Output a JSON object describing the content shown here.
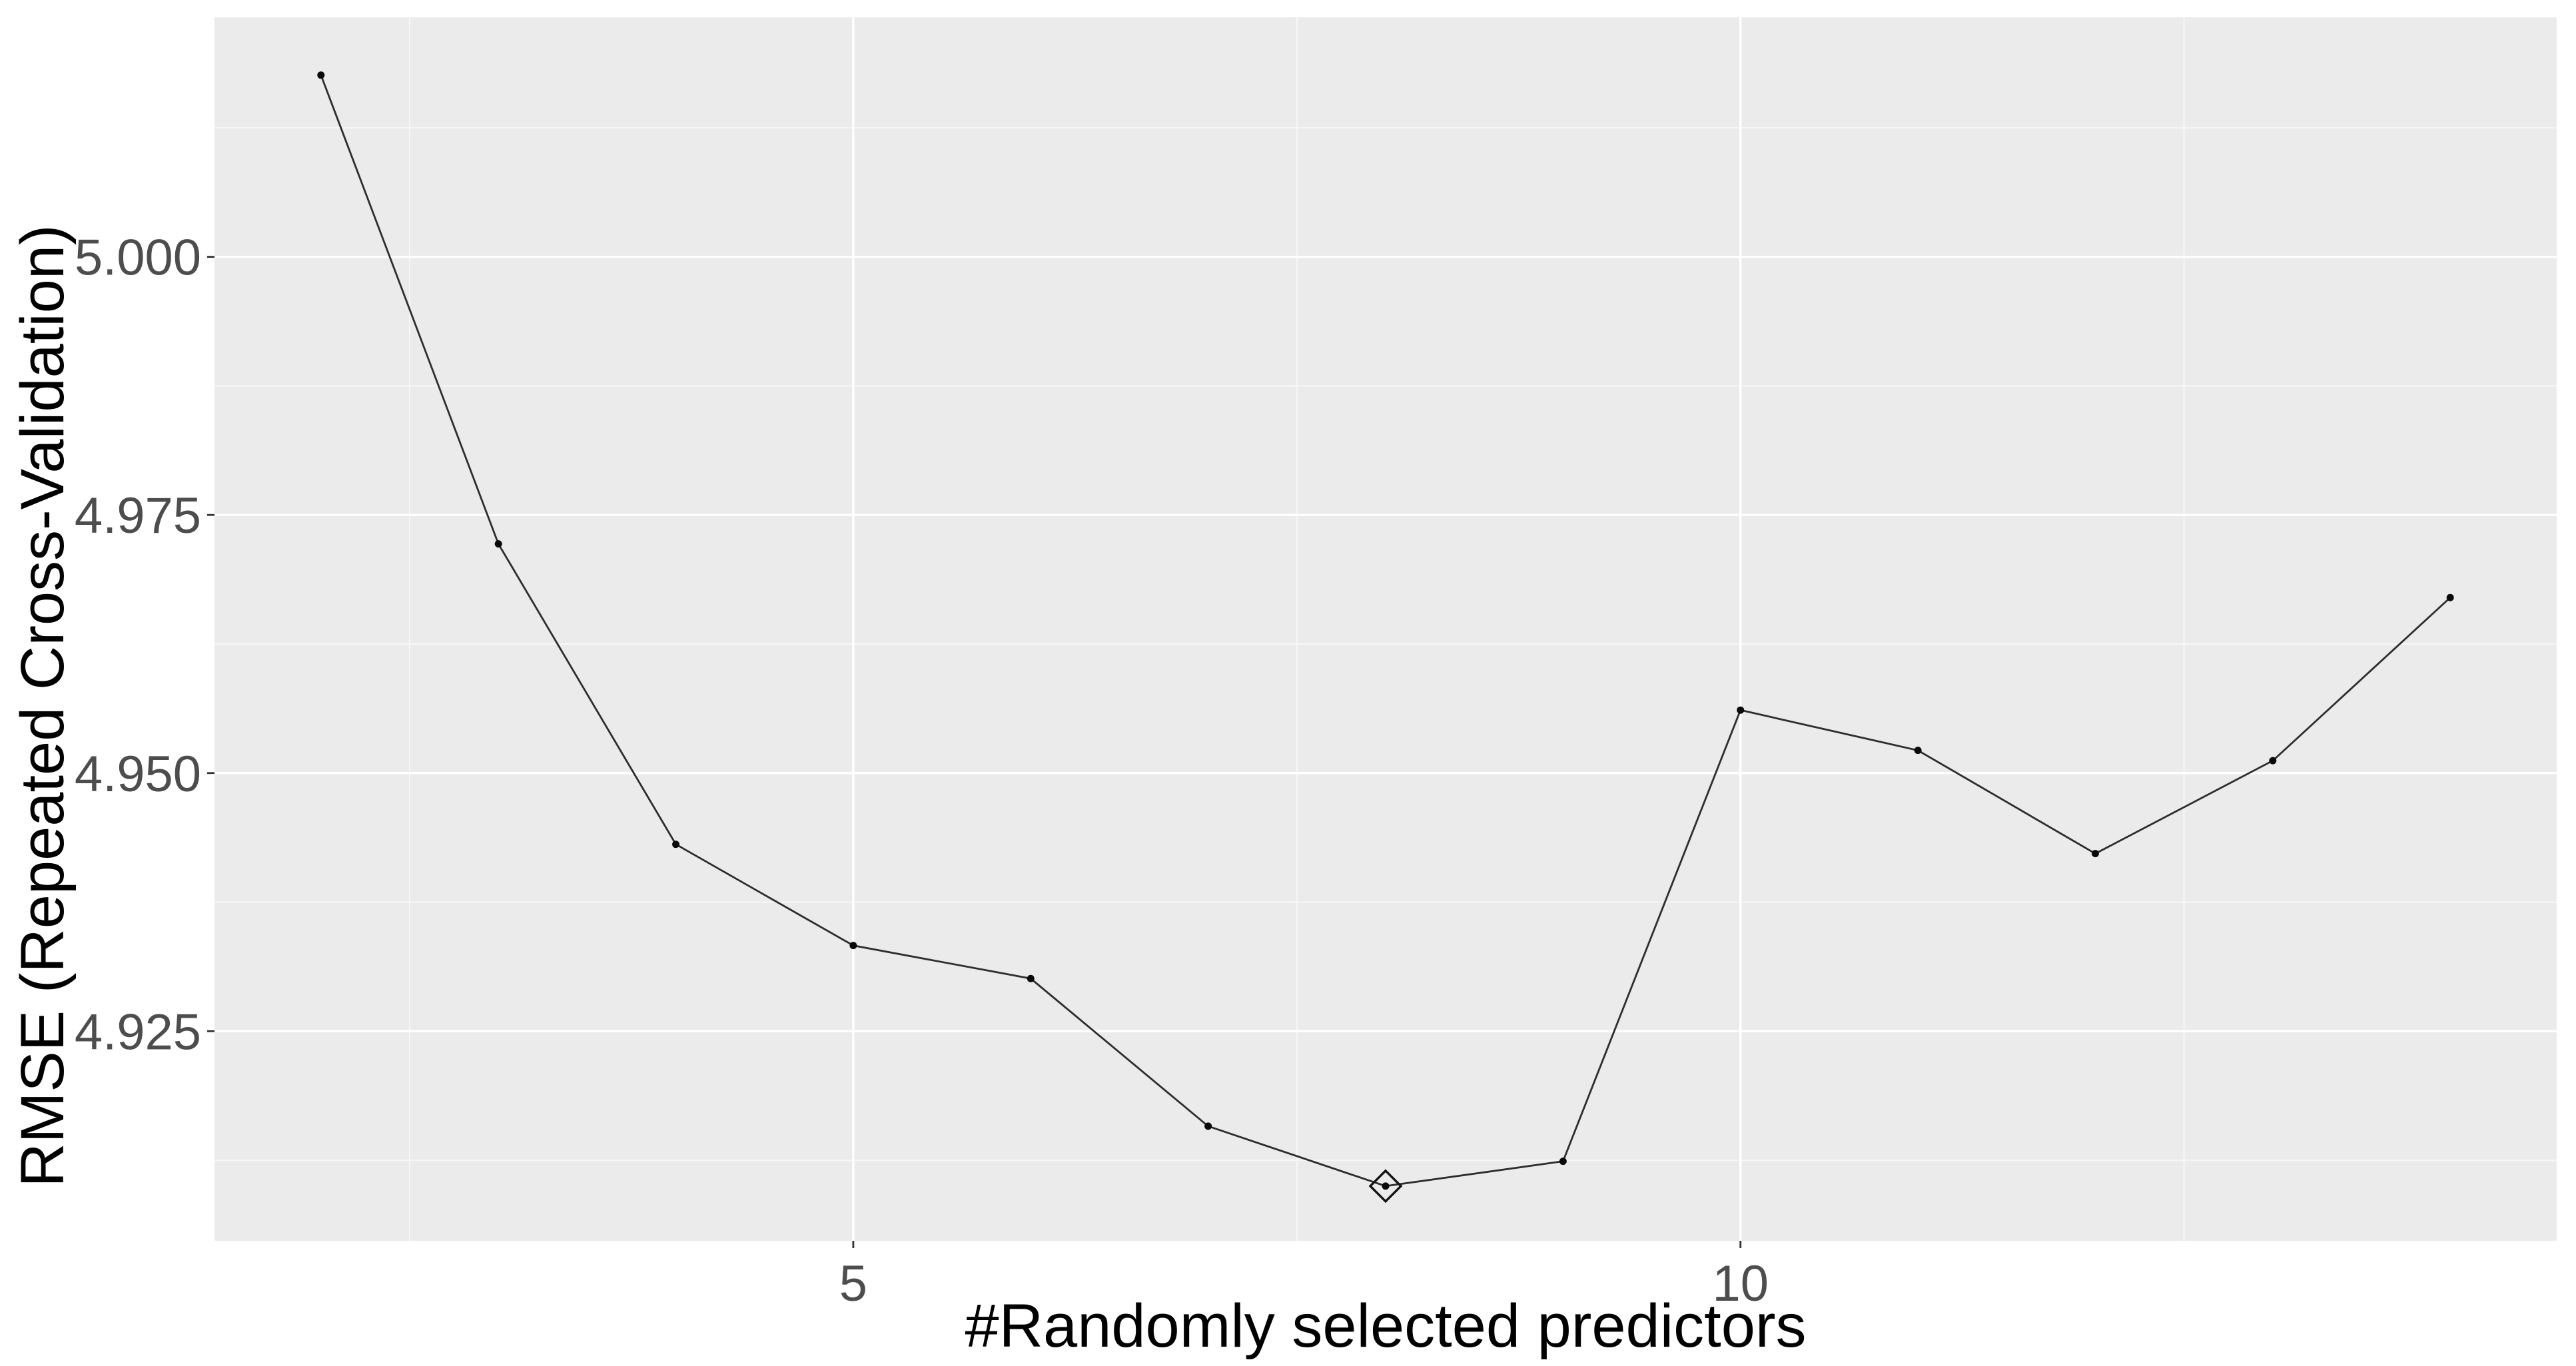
{
  "chart_data": {
    "type": "line",
    "title": "",
    "xlabel": "#Randomly selected predictors",
    "ylabel": "RMSE (Repeated Cross-Validation)",
    "x": [
      2,
      3,
      4,
      5,
      6,
      7,
      8,
      9,
      10,
      11,
      12,
      13,
      14
    ],
    "series": [
      {
        "name": "RMSE",
        "values": [
          5.0176,
          4.9722,
          4.9431,
          4.9333,
          4.9301,
          4.9158,
          4.91,
          4.9124,
          4.9561,
          4.9522,
          4.9422,
          4.9512,
          4.967
        ]
      }
    ],
    "best_point": {
      "x": 8,
      "value": 4.91,
      "marker": "open-diamond"
    },
    "x_ticks": [
      5,
      10
    ],
    "x_tick_labels": [
      "5",
      "10"
    ],
    "x_minor": [
      2.5,
      7.5,
      12.5
    ],
    "y_ticks": [
      5.0,
      4.975,
      4.95,
      4.925
    ],
    "y_tick_labels": [
      "5.000",
      "4.975",
      "4.950",
      "4.925"
    ],
    "y_minor": [
      5.0125,
      4.9875,
      4.9625,
      4.9375,
      4.9125
    ],
    "xlim": [
      1.4,
      14.6
    ],
    "ylim": [
      4.9047,
      5.0232
    ],
    "grid": true,
    "legend": "none",
    "panel_background": "#ebebeb",
    "outer_background": "#ffffff",
    "line_color": "#2e2e2e",
    "point_color": "#0a0a0a",
    "grid_major_color": "#ffffff",
    "grid_minor_color": "#f7f7f7",
    "tick_label_color": "#4d4d4d",
    "axis_title_color": "#000000"
  }
}
